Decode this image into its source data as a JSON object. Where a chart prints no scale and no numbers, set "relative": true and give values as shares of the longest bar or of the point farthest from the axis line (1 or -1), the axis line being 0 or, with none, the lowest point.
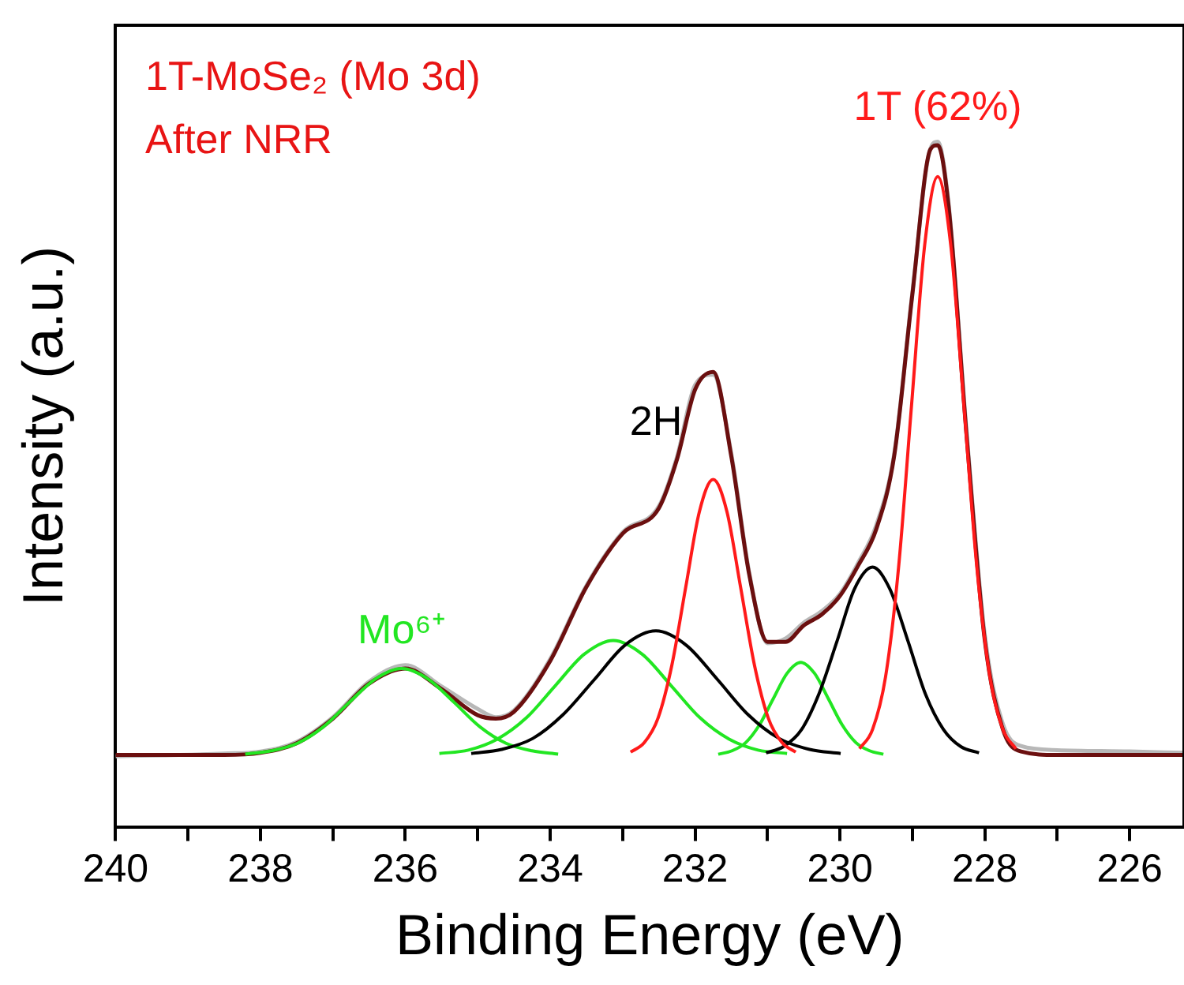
{
  "chart_data": {
    "type": "line",
    "title": "1T-MoSe₂ (Mo 3d)",
    "subtitle": "After NRR",
    "xlabel": "Binding Energy (eV)",
    "ylabel": "Intensity (a.u.)",
    "relative": true,
    "xlim": [
      240,
      225.25
    ],
    "xticks": [
      240,
      {
        "value": 239,
        "label": null
      },
      238,
      {
        "value": 237,
        "label": null
      },
      236,
      {
        "value": 235,
        "label": null
      },
      234,
      {
        "value": 233,
        "label": null
      },
      232,
      {
        "value": 231,
        "label": null
      },
      230,
      {
        "value": 229,
        "label": null
      },
      228,
      {
        "value": 227,
        "label": null
      },
      226
    ],
    "grid": false,
    "legend": false,
    "marker": "none",
    "line_style": "solid",
    "series": [
      {
        "color": "#b8b8b8",
        "x": [
          240,
          238.5,
          238,
          237.5,
          237,
          236.5,
          236,
          235.5,
          235,
          234.75,
          234.5,
          234,
          233.5,
          233,
          232.5,
          232.25,
          232,
          231.75,
          231.5,
          231.25,
          231,
          230.75,
          230.5,
          230.25,
          230,
          229.75,
          229.5,
          229.25,
          229,
          228.75,
          228.65,
          228.5,
          228.25,
          228,
          227.75,
          227.5,
          227,
          226,
          225.25
        ],
        "values": [
          0.103,
          0.107,
          0.11,
          0.124,
          0.16,
          0.212,
          0.236,
          0.205,
          0.172,
          0.16,
          0.17,
          0.245,
          0.352,
          0.43,
          0.468,
          0.54,
          0.645,
          0.66,
          0.545,
          0.37,
          0.268,
          0.275,
          0.298,
          0.315,
          0.34,
          0.385,
          0.44,
          0.545,
          0.78,
          0.99,
          1.0,
          0.91,
          0.575,
          0.28,
          0.15,
          0.118,
          0.112,
          0.11,
          0.108
        ]
      },
      {
        "color": "#6b0f0f",
        "x": [
          240,
          238.5,
          238,
          237.5,
          237,
          236.5,
          236,
          235.5,
          235,
          234.75,
          234.5,
          234,
          233.5,
          233,
          232.5,
          232.25,
          232,
          231.75,
          231.5,
          231.25,
          231,
          230.75,
          230.5,
          230.25,
          230,
          229.75,
          229.5,
          229.25,
          229,
          228.75,
          228.65,
          228.5,
          228.25,
          228,
          227.75,
          227.5,
          227,
          226,
          225.25
        ],
        "values": [
          0.105,
          0.105,
          0.108,
          0.122,
          0.158,
          0.209,
          0.231,
          0.201,
          0.163,
          0.158,
          0.168,
          0.242,
          0.35,
          0.428,
          0.465,
          0.536,
          0.638,
          0.664,
          0.541,
          0.367,
          0.27,
          0.27,
          0.294,
          0.31,
          0.337,
          0.381,
          0.434,
          0.542,
          0.777,
          0.989,
          0.995,
          0.906,
          0.569,
          0.272,
          0.142,
          0.11,
          0.105,
          0.105,
          0.105
        ]
      },
      {
        "name": "Mo⁶⁺",
        "color": "#22e622",
        "x": [
          238.21,
          237.85,
          237.49,
          237.13,
          236.77,
          236.41,
          236.05,
          235.69,
          235.33,
          234.97,
          234.61,
          234.25,
          233.89
        ],
        "values": [
          0.106,
          0.111,
          0.122,
          0.146,
          0.182,
          0.216,
          0.231,
          0.216,
          0.182,
          0.146,
          0.122,
          0.111,
          0.106
        ]
      },
      {
        "color": "#22e622",
        "x": [
          235.53,
          235.13,
          234.73,
          234.33,
          233.93,
          233.53,
          233.13,
          232.73,
          232.33,
          231.93,
          231.53,
          231.13,
          230.73
        ],
        "values": [
          0.107,
          0.112,
          0.128,
          0.159,
          0.206,
          0.252,
          0.272,
          0.252,
          0.206,
          0.159,
          0.128,
          0.112,
          0.107
        ]
      },
      {
        "color": "#22e622",
        "x": [
          231.68,
          231.49,
          231.3,
          231.11,
          230.92,
          230.73,
          230.54,
          230.35,
          230.16,
          229.97,
          229.78,
          229.59,
          229.4
        ],
        "values": [
          0.106,
          0.111,
          0.123,
          0.149,
          0.187,
          0.224,
          0.24,
          0.224,
          0.187,
          0.149,
          0.123,
          0.111,
          0.106
        ]
      },
      {
        "name": "2H",
        "color": "#000000",
        "x": [
          235.09,
          234.67,
          234.24,
          233.82,
          233.39,
          232.97,
          232.54,
          232.12,
          231.69,
          231.27,
          230.84,
          230.42,
          229.99
        ],
        "values": [
          0.107,
          0.113,
          0.129,
          0.164,
          0.215,
          0.265,
          0.286,
          0.265,
          0.215,
          0.164,
          0.129,
          0.113,
          0.107
        ]
      },
      {
        "color": "#000000",
        "x": [
          231.02,
          230.78,
          230.53,
          230.29,
          230.04,
          229.8,
          229.55,
          229.31,
          229.06,
          228.82,
          228.57,
          228.33,
          228.08
        ],
        "values": [
          0.108,
          0.117,
          0.142,
          0.194,
          0.271,
          0.347,
          0.379,
          0.347,
          0.271,
          0.194,
          0.142,
          0.117,
          0.108
        ]
      },
      {
        "color": "#ff1a1a",
        "x": [
          232.89,
          232.7,
          232.51,
          232.32,
          232.13,
          231.94,
          231.75,
          231.56,
          231.37,
          231.18,
          230.99,
          230.8,
          230.61
        ],
        "values": [
          0.109,
          0.123,
          0.159,
          0.236,
          0.349,
          0.46,
          0.507,
          0.46,
          0.349,
          0.236,
          0.159,
          0.123,
          0.109
        ]
      },
      {
        "name": "1T (62%)",
        "color": "#ff1a1a",
        "x": [
          229.73,
          229.55,
          229.37,
          229.19,
          229.01,
          228.83,
          228.65,
          228.47,
          228.29,
          228.11,
          227.93,
          227.75,
          227.57
        ],
        "values": [
          0.114,
          0.142,
          0.219,
          0.379,
          0.617,
          0.849,
          0.949,
          0.849,
          0.617,
          0.379,
          0.219,
          0.142,
          0.114
        ]
      }
    ]
  }
}
